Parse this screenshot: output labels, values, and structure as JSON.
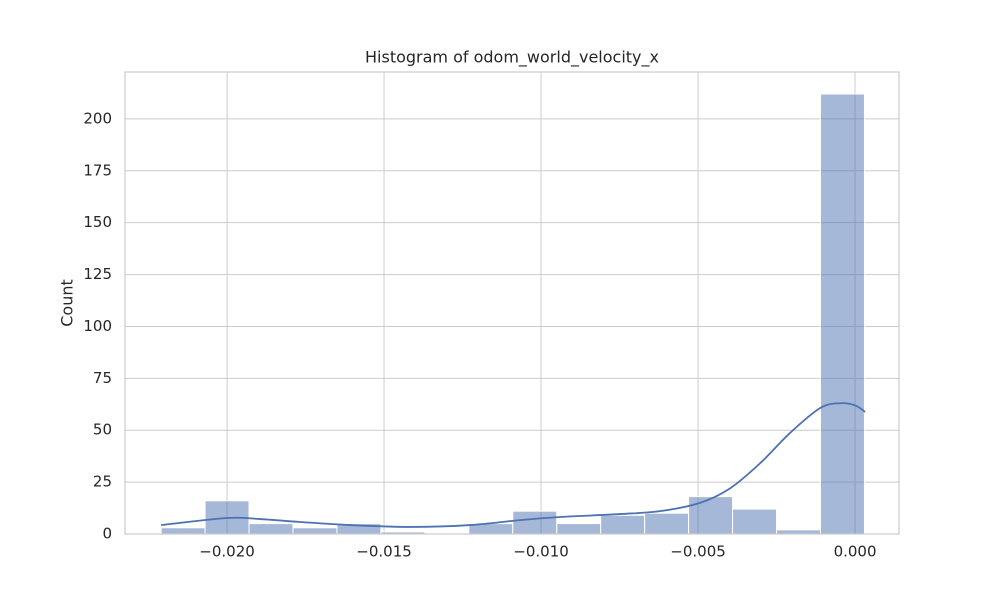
{
  "chart_data": {
    "type": "histogram",
    "title": "Histogram of odom_world_velocity_x",
    "y_label": "Count",
    "bins": [
      -0.0221,
      -0.0207,
      -0.0193,
      -0.0179,
      -0.0165,
      -0.0151,
      -0.0137,
      -0.0123,
      -0.0109,
      -0.0095,
      -0.0081,
      -0.0067,
      -0.0053,
      -0.0039,
      -0.0025,
      -0.0011,
      0.0003
    ],
    "values": [
      3,
      16,
      5,
      3,
      5,
      1,
      0,
      5,
      11,
      5,
      9,
      10,
      18,
      12,
      2,
      212
    ],
    "color": "#4c72b0",
    "kde": {
      "color": "#4c72b0",
      "x": [
        -0.0221,
        -0.02,
        -0.01895,
        -0.01768,
        -0.01608,
        -0.01417,
        -0.01226,
        -0.01067,
        -0.00939,
        -0.00748,
        -0.00621,
        -0.00494,
        -0.00398,
        -0.00303,
        -0.00207,
        -0.00111,
        -0.00048,
        0.0,
        0.00032
      ],
      "values": [
        4.3,
        7.7,
        7.2,
        5.8,
        4.3,
        3.4,
        4.3,
        6.7,
        8.2,
        9.6,
        11,
        15,
        22,
        34,
        48.7,
        60.7,
        63,
        62,
        58.8
      ]
    },
    "xlim": [
      -0.02325,
      0.0014
    ],
    "ylim": [
      0,
      222.6
    ],
    "xticks": [
      {
        "value": -0.02,
        "label": "−0.020"
      },
      {
        "value": -0.015,
        "label": "−0.015"
      },
      {
        "value": -0.01,
        "label": "−0.010"
      },
      {
        "value": -0.005,
        "label": "−0.005"
      },
      {
        "value": 0,
        "label": "0.000"
      }
    ],
    "yticks": [
      0,
      25,
      50,
      75,
      100,
      125,
      150,
      175,
      200
    ],
    "grid": true
  }
}
